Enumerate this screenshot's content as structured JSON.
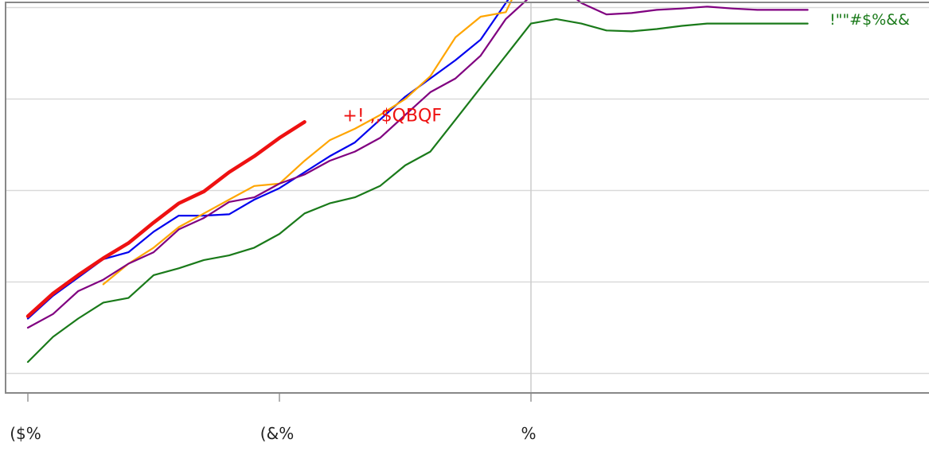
{
  "chart_data": {
    "type": "line",
    "title": "",
    "xlabel": "",
    "ylabel": "",
    "grid": true,
    "xlim": [
      0,
      36
    ],
    "ylim": [
      0,
      10
    ],
    "x_ticks": [
      {
        "x": 0,
        "label": "($%"
      },
      {
        "x": 10,
        "label": "(&%"
      },
      {
        "x": 20,
        "label": "%"
      }
    ],
    "y_gridlines": [
      0.2,
      2.2,
      4.2,
      6.2,
      8.2
    ],
    "reference_x": 20,
    "series": [
      {
        "name": "!\"\"#$%$$",
        "color": "#0000ee",
        "width": 2.2,
        "points": [
          [
            0,
            1.4
          ],
          [
            1,
            1.9
          ],
          [
            2,
            2.3
          ],
          [
            3,
            2.7
          ],
          [
            4,
            2.85
          ],
          [
            5,
            3.3
          ],
          [
            6,
            3.65
          ],
          [
            7,
            3.65
          ],
          [
            8,
            3.68
          ],
          [
            9,
            4.0
          ],
          [
            10,
            4.25
          ],
          [
            11,
            4.6
          ],
          [
            12,
            4.95
          ],
          [
            13,
            5.25
          ],
          [
            14,
            5.75
          ],
          [
            15,
            6.25
          ],
          [
            16,
            6.65
          ],
          [
            17,
            7.05
          ],
          [
            18,
            7.5
          ],
          [
            19,
            8.3
          ],
          [
            20,
            9.05
          ],
          [
            21,
            9.25
          ],
          [
            22,
            9.15
          ],
          [
            23,
            9.0
          ],
          [
            24,
            9.05
          ],
          [
            25,
            9.08
          ],
          [
            26,
            9.18
          ],
          [
            27,
            9.2
          ],
          [
            28,
            9.2
          ],
          [
            29,
            9.2
          ],
          [
            30,
            9.17
          ],
          [
            31,
            9.15
          ]
        ]
      },
      {
        "name": "!\"\"#$%$%",
        "color": "#ffa500",
        "width": 2.2,
        "points": [
          [
            3,
            2.15
          ],
          [
            4,
            2.6
          ],
          [
            5,
            2.95
          ],
          [
            6,
            3.4
          ],
          [
            7,
            3.7
          ],
          [
            8,
            4.0
          ],
          [
            9,
            4.3
          ],
          [
            10,
            4.35
          ],
          [
            11,
            4.85
          ],
          [
            12,
            5.3
          ],
          [
            13,
            5.55
          ],
          [
            14,
            5.85
          ],
          [
            15,
            6.2
          ],
          [
            16,
            6.7
          ],
          [
            17,
            7.55
          ],
          [
            18,
            8.0
          ],
          [
            19,
            8.1
          ],
          [
            20,
            9.25
          ],
          [
            21,
            9.22
          ],
          [
            22,
            9.0
          ],
          [
            23,
            8.55
          ],
          [
            24,
            8.62
          ],
          [
            25,
            8.65
          ],
          [
            26,
            8.68
          ],
          [
            27,
            8.7
          ],
          [
            28,
            8.7
          ],
          [
            29,
            8.7
          ],
          [
            30,
            8.7
          ],
          [
            31,
            8.7
          ]
        ]
      },
      {
        "name": "!\"\"#$%&&",
        "color": "#1a7a1a",
        "width": 2.2,
        "points": [
          [
            0,
            0.45
          ],
          [
            1,
            1.0
          ],
          [
            2,
            1.4
          ],
          [
            3,
            1.75
          ],
          [
            4,
            1.85
          ],
          [
            5,
            2.35
          ],
          [
            6,
            2.5
          ],
          [
            7,
            2.68
          ],
          [
            8,
            2.78
          ],
          [
            9,
            2.95
          ],
          [
            10,
            3.25
          ],
          [
            11,
            3.7
          ],
          [
            12,
            3.92
          ],
          [
            13,
            4.05
          ],
          [
            14,
            4.3
          ],
          [
            15,
            4.75
          ],
          [
            16,
            5.05
          ],
          [
            17,
            5.75
          ],
          [
            18,
            6.45
          ],
          [
            19,
            7.15
          ],
          [
            20,
            7.85
          ],
          [
            21,
            7.95
          ],
          [
            22,
            7.85
          ],
          [
            23,
            7.7
          ],
          [
            24,
            7.68
          ],
          [
            25,
            7.73
          ],
          [
            26,
            7.8
          ],
          [
            27,
            7.85
          ],
          [
            28,
            7.85
          ],
          [
            29,
            7.85
          ],
          [
            30,
            7.85
          ],
          [
            31,
            7.85
          ]
        ]
      },
      {
        "name": "",
        "color": "#800080",
        "width": 2.2,
        "points": [
          [
            0,
            1.2
          ],
          [
            1,
            1.5
          ],
          [
            2,
            2.0
          ],
          [
            3,
            2.25
          ],
          [
            4,
            2.6
          ],
          [
            5,
            2.85
          ],
          [
            6,
            3.35
          ],
          [
            7,
            3.6
          ],
          [
            8,
            3.95
          ],
          [
            9,
            4.05
          ],
          [
            10,
            4.35
          ],
          [
            11,
            4.55
          ],
          [
            12,
            4.85
          ],
          [
            13,
            5.05
          ],
          [
            14,
            5.35
          ],
          [
            15,
            5.85
          ],
          [
            16,
            6.35
          ],
          [
            17,
            6.65
          ],
          [
            18,
            7.15
          ],
          [
            19,
            7.95
          ],
          [
            20,
            8.45
          ],
          [
            21,
            8.75
          ],
          [
            22,
            8.3
          ],
          [
            23,
            8.05
          ],
          [
            24,
            8.08
          ],
          [
            25,
            8.15
          ],
          [
            26,
            8.18
          ],
          [
            27,
            8.22
          ],
          [
            28,
            8.18
          ],
          [
            29,
            8.15
          ],
          [
            30,
            8.15
          ],
          [
            31,
            8.15
          ]
        ]
      },
      {
        "name": "",
        "color": "#ee1111",
        "width": 4.5,
        "points": [
          [
            0,
            1.45
          ],
          [
            1,
            1.95
          ],
          [
            2,
            2.35
          ],
          [
            3,
            2.72
          ],
          [
            4,
            3.05
          ],
          [
            5,
            3.5
          ],
          [
            6,
            3.92
          ],
          [
            7,
            4.18
          ],
          [
            8,
            4.6
          ],
          [
            9,
            4.95
          ],
          [
            10,
            5.35
          ],
          [
            11,
            5.7
          ]
        ]
      }
    ],
    "annotations": [
      {
        "text": "+! ,,$QBQF",
        "x": 11.5,
        "y": 5.85,
        "color": "#ee1111"
      }
    ],
    "series_labels": [
      {
        "text": "!\"\"#$%$$",
        "color": "#0000ee",
        "y": 9.2
      },
      {
        "text": "!\"\"#$%$%",
        "color": "#ffa500",
        "y": 8.85
      },
      {
        "text": "!\"\"#$%&&",
        "color": "#1a7a1a",
        "y": 7.95
      }
    ]
  }
}
